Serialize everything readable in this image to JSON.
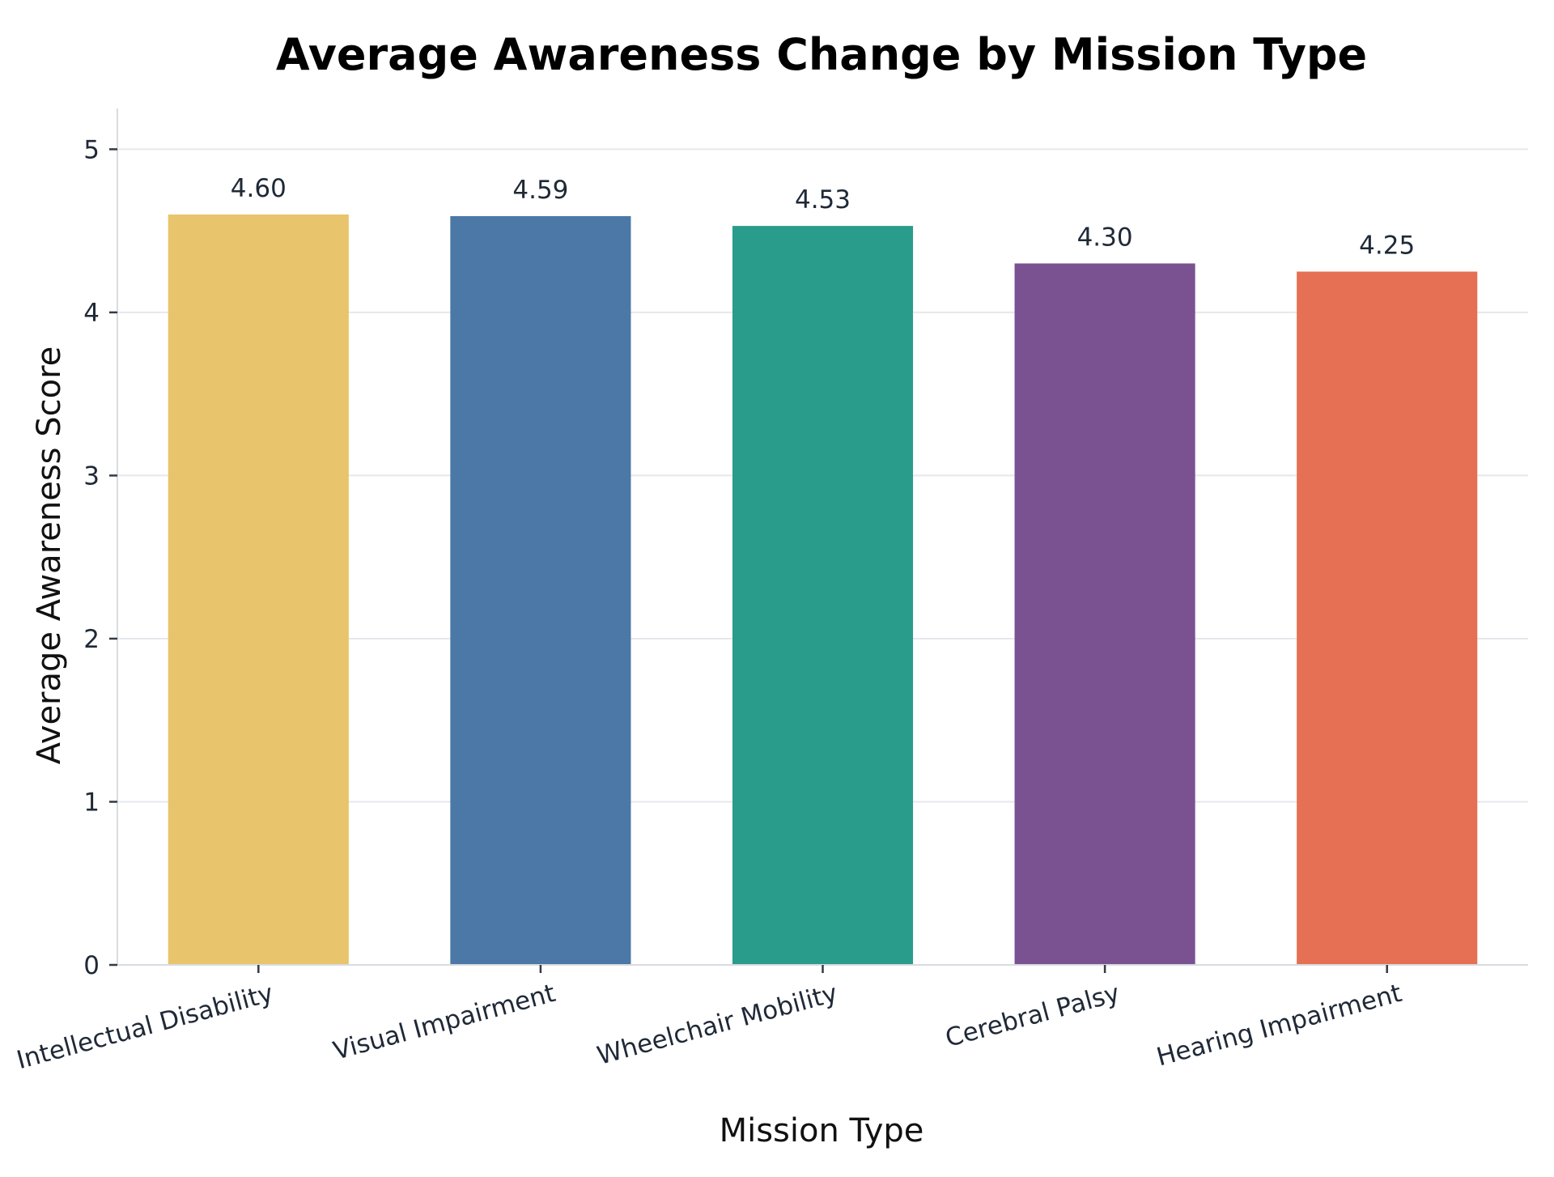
{
  "chart_data": {
    "type": "bar",
    "title": "Average Awareness Change by Mission Type",
    "xlabel": "Mission Type",
    "ylabel": "Average Awareness Score",
    "categories": [
      "Intellectual Disability",
      "Visual Impairment",
      "Wheelchair Mobility",
      "Cerebral Palsy",
      "Hearing Impairment"
    ],
    "values": [
      4.6,
      4.59,
      4.53,
      4.3,
      4.25
    ],
    "data_labels": [
      "4.60",
      "4.59",
      "4.53",
      "4.30",
      "4.25"
    ],
    "colors": [
      "#e8c46c",
      "#4b78a6",
      "#2a9c8c",
      "#7a5292",
      "#e67053"
    ],
    "ylim": [
      0,
      5.25
    ],
    "yticks": [
      0,
      1,
      2,
      3,
      4,
      5
    ],
    "grid": "y-major",
    "legend": "none"
  }
}
